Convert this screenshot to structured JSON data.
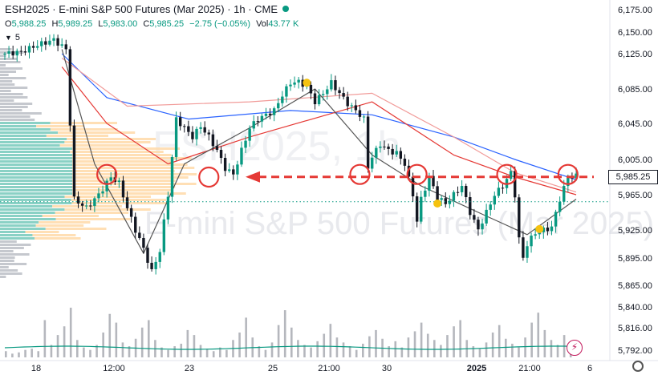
{
  "header": {
    "title": "ESH2025 · E-mini S&P 500 Futures (Mar 2025) · 1h · CME",
    "ohlc": [
      {
        "k": "O",
        "v": "5,988.25"
      },
      {
        "k": "H",
        "v": "5,989.25"
      },
      {
        "k": "L",
        "v": "5,983.00"
      },
      {
        "k": "C",
        "v": "5,985.25"
      }
    ],
    "change": "−2.75 (−0.05%)",
    "vol_label": "Vol",
    "vol_value": "43.77 K",
    "indicator_count": "5",
    "watermark": "E-mini S&P 500 Futures (Mar 2025)",
    "watermark_sym": "ESH2025, 1h"
  },
  "price_tag": "5,985.25",
  "colors": {
    "up": "#089981",
    "down": "#131722",
    "arrow": "#e53935",
    "circle": "#e53935",
    "dotted": "#089981",
    "vp_teal": "#63c2b2",
    "vp_orange": "#ffd9a8",
    "vp_grey": "#b2b5be",
    "dot_yellow": "#f5c20f"
  },
  "chart_data": {
    "type": "candlestick",
    "symbol": "ESH2025",
    "timeframe": "1h",
    "y_ticks": [
      6175,
      6150,
      6125,
      6085,
      6045,
      6005,
      5965,
      5925,
      5895,
      5865,
      5840,
      5816,
      5792
    ],
    "y_tick_labels": [
      "6,175.00",
      "6,150.00",
      "6,125.00",
      "6,085.00",
      "6,045.00",
      "6,005.00",
      "5,965.00",
      "5,925.00",
      "5,895.00",
      "5,865.00",
      "5,840.00",
      "5,816.00",
      "5,792.00"
    ],
    "x_ticks": [
      "18",
      "12:00",
      "23",
      "25",
      "21:00",
      "30",
      "2025",
      "21:00",
      "6"
    ],
    "last_price": 5985.25,
    "horizontal_level": 5985.25,
    "dotted_level": 5957,
    "close_path": [
      [
        0,
        6125
      ],
      [
        4,
        6127
      ],
      [
        8,
        6135
      ],
      [
        12,
        6141
      ],
      [
        15,
        6130
      ],
      [
        17,
        5960
      ],
      [
        20,
        5950
      ],
      [
        23,
        5965
      ],
      [
        26,
        5985
      ],
      [
        28,
        5978
      ],
      [
        30,
        5950
      ],
      [
        32,
        5925
      ],
      [
        34,
        5905
      ],
      [
        36,
        5880
      ],
      [
        38,
        5903
      ],
      [
        40,
        5965
      ],
      [
        42,
        6050
      ],
      [
        44,
        6040
      ],
      [
        46,
        6030
      ],
      [
        48,
        6042
      ],
      [
        50,
        6030
      ],
      [
        52,
        6015
      ],
      [
        54,
        5995
      ],
      [
        56,
        5988
      ],
      [
        58,
        6015
      ],
      [
        60,
        6040
      ],
      [
        62,
        6050
      ],
      [
        64,
        6055
      ],
      [
        66,
        6060
      ],
      [
        68,
        6078
      ],
      [
        70,
        6092
      ],
      [
        72,
        6093
      ],
      [
        74,
        6088
      ],
      [
        76,
        6070
      ],
      [
        78,
        6080
      ],
      [
        80,
        6092
      ],
      [
        82,
        6080
      ],
      [
        84,
        6068
      ],
      [
        86,
        6060
      ],
      [
        88,
        6050
      ],
      [
        89,
        5996
      ],
      [
        90,
        6008
      ],
      [
        92,
        6022
      ],
      [
        94,
        6015
      ],
      [
        96,
        6012
      ],
      [
        98,
        6000
      ],
      [
        100,
        5965
      ],
      [
        101,
        5935
      ],
      [
        102,
        5960
      ],
      [
        104,
        5985
      ],
      [
        106,
        5962
      ],
      [
        108,
        5955
      ],
      [
        110,
        5965
      ],
      [
        112,
        5975
      ],
      [
        114,
        5945
      ],
      [
        116,
        5925
      ],
      [
        118,
        5945
      ],
      [
        120,
        5965
      ],
      [
        122,
        5975
      ],
      [
        124,
        5990
      ],
      [
        125,
        5965
      ],
      [
        126,
        5915
      ],
      [
        127,
        5895
      ],
      [
        128,
        5910
      ],
      [
        130,
        5922
      ],
      [
        132,
        5925
      ],
      [
        134,
        5928
      ],
      [
        136,
        5960
      ],
      [
        138,
        5985
      ],
      [
        140,
        5986
      ]
    ],
    "emas": [
      {
        "color": "#2962ff",
        "values": [
          [
            14,
            6125
          ],
          [
            25,
            6075
          ],
          [
            45,
            6050
          ],
          [
            70,
            6060
          ],
          [
            90,
            6055
          ],
          [
            110,
            6030
          ],
          [
            125,
            6005
          ],
          [
            140,
            5982
          ]
        ]
      },
      {
        "color": "#e53935",
        "values": [
          [
            14,
            6110
          ],
          [
            25,
            6045
          ],
          [
            40,
            6000
          ],
          [
            60,
            6030
          ],
          [
            90,
            6070
          ],
          [
            110,
            6010
          ],
          [
            125,
            5985
          ],
          [
            140,
            5965
          ]
        ]
      },
      {
        "color": "#f19b99",
        "values": [
          [
            14,
            6120
          ],
          [
            30,
            6065
          ],
          [
            60,
            6070
          ],
          [
            90,
            6080
          ],
          [
            110,
            6030
          ],
          [
            125,
            5990
          ],
          [
            140,
            5968
          ]
        ]
      },
      {
        "color": "#555555",
        "values": [
          [
            14,
            6130
          ],
          [
            22,
            6000
          ],
          [
            34,
            5900
          ],
          [
            44,
            6000
          ],
          [
            60,
            6040
          ],
          [
            76,
            6085
          ],
          [
            90,
            6010
          ],
          [
            102,
            5975
          ],
          [
            116,
            5945
          ],
          [
            128,
            5920
          ],
          [
            140,
            5960
          ]
        ]
      }
    ],
    "circles": [
      [
        25,
        5988
      ],
      [
        50,
        5985
      ],
      [
        87,
        5988
      ],
      [
        101,
        5988
      ],
      [
        123,
        5988
      ],
      [
        138,
        5988
      ]
    ],
    "dots": [
      [
        74,
        6092
      ],
      [
        106,
        5955
      ],
      [
        131,
        5926
      ]
    ],
    "volume": [
      5,
      3,
      4,
      6,
      7,
      5,
      30,
      10,
      18,
      25,
      40,
      14,
      8,
      6,
      10,
      20,
      35,
      28,
      12,
      9,
      15,
      24,
      30,
      14,
      8,
      6,
      9,
      11,
      22,
      18,
      10,
      7,
      5,
      8,
      6,
      14,
      20,
      32,
      16,
      9,
      6,
      12,
      26,
      38,
      24,
      14,
      10,
      8,
      13,
      19,
      27,
      16,
      12,
      9,
      6,
      11,
      17,
      22,
      15,
      9,
      13,
      8,
      16,
      21,
      28,
      19,
      14,
      10,
      18,
      25,
      30,
      14,
      9,
      7,
      12,
      20,
      26,
      15,
      11,
      8,
      16,
      28,
      36,
      22,
      14,
      10,
      18,
      12
    ]
  }
}
